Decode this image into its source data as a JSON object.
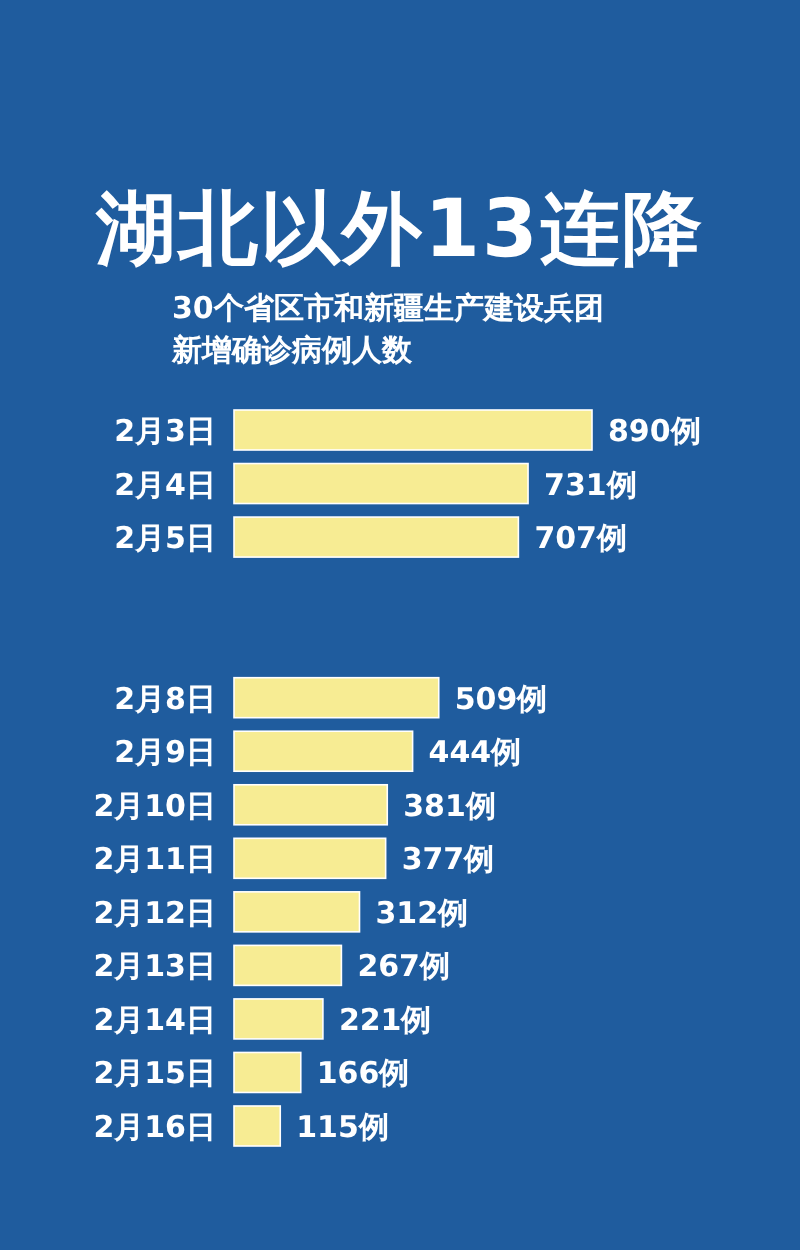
{
  "chart_data": {
    "type": "bar",
    "orientation": "horizontal",
    "title": "湖北以外13连降",
    "subtitle": "30个省区市和新疆生产建设兵团新增确诊病例人数",
    "categories": [
      "2月3日",
      "2月4日",
      "2月5日",
      null,
      null,
      "2月8日",
      "2月9日",
      "2月10日",
      "2月11日",
      "2月12日",
      "2月13日",
      "2月14日",
      "2月15日",
      "2月16日"
    ],
    "values": [
      890,
      731,
      707,
      null,
      null,
      509,
      444,
      381,
      377,
      312,
      267,
      221,
      166,
      115
    ],
    "value_labels": [
      "890例",
      "731例",
      "707例",
      null,
      null,
      "509例",
      "444例",
      "381例",
      "377例",
      "312例",
      "267例",
      "221例",
      "166例",
      "115例"
    ],
    "color": "#f7ec93"
  }
}
